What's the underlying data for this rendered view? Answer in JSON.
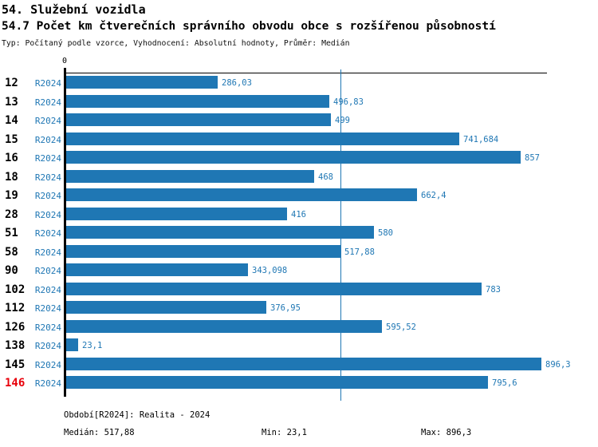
{
  "header": {
    "title": "54. Služební vozidla",
    "subtitle": "54.7 Počet km čtverečních správního obvodu obce s rozšířenou působností",
    "meta": "Typ: Počítaný podle vzorce, Vyhodnocení: Absolutní hodnoty, Průměr: Medián"
  },
  "chart_data": {
    "type": "bar",
    "orientation": "horizontal",
    "title": "54.7 Počet km čtverečních správního obvodu obce s rozšířenou působností",
    "series_name": "R2024",
    "categories": [
      "12",
      "13",
      "14",
      "15",
      "16",
      "18",
      "19",
      "28",
      "51",
      "58",
      "90",
      "102",
      "112",
      "126",
      "138",
      "145",
      "146"
    ],
    "values": [
      286.03,
      496.83,
      499,
      741.684,
      857,
      468,
      662.4,
      416,
      580,
      517.88,
      343.098,
      783,
      376.95,
      595.52,
      23.1,
      896.3,
      795.6
    ],
    "value_labels": [
      "286,03",
      "496,83",
      "499",
      "741,684",
      "857",
      "468",
      "662,4",
      "416",
      "580",
      "517,88",
      "343,098",
      "783",
      "376,95",
      "595,52",
      "23,1",
      "896,3",
      "795,6"
    ],
    "highlighted_category": "146",
    "zero_tick_label": "0",
    "median_value": 517.88,
    "xlim": [
      0,
      907
    ],
    "grid": false,
    "legend": "none",
    "bar_color": "#1f77b4",
    "text_color": "#1f77b4",
    "highlight_color": "#e8000b",
    "median_line_color": "#1f77b4",
    "axis_color": "#000000"
  },
  "footer": {
    "period": "Období[R2024]: Realita - 2024",
    "median_label": "Medián:",
    "median_value": "517,88",
    "min_label": "Min:",
    "min_value": "23,1",
    "max_label": "Max:",
    "max_value": "896,3"
  }
}
